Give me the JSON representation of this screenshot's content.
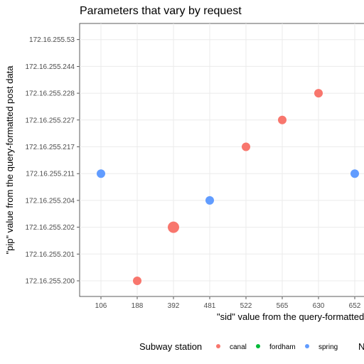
{
  "chart_data": {
    "type": "scatter",
    "title": "Parameters that vary by request",
    "xlabel": "\"sid\" value from the query-formatted post data",
    "ylabel": "\"pip\" value from the query-formatted post data",
    "x_categories": [
      "106",
      "188",
      "392",
      "481",
      "522",
      "565",
      "630",
      "652"
    ],
    "y_categories": [
      "172.16.255.200",
      "172.16.255.201",
      "172.16.255.202",
      "172.16.255.204",
      "172.16.255.211",
      "172.16.255.217",
      "172.16.255.227",
      "172.16.255.228",
      "172.16.255.244",
      "172.16.255.53"
    ],
    "grid": true,
    "legend": {
      "title": "Subway station",
      "placement": "bottom",
      "entries": [
        {
          "label": "canal",
          "color": "#F8766D"
        },
        {
          "label": "fordham",
          "color": "#00BA38"
        },
        {
          "label": "spring",
          "color": "#619CFF"
        }
      ],
      "extra_label": "N"
    },
    "points": [
      {
        "x": "106",
        "y": "172.16.255.211",
        "station": "spring",
        "n": 1
      },
      {
        "x": "188",
        "y": "172.16.255.200",
        "station": "canal",
        "n": 1
      },
      {
        "x": "392",
        "y": "172.16.255.202",
        "station": "canal",
        "n": 2
      },
      {
        "x": "481",
        "y": "172.16.255.204",
        "station": "spring",
        "n": 1
      },
      {
        "x": "522",
        "y": "172.16.255.217",
        "station": "canal",
        "n": 1
      },
      {
        "x": "565",
        "y": "172.16.255.227",
        "station": "canal",
        "n": 1
      },
      {
        "x": "630",
        "y": "172.16.255.228",
        "station": "canal",
        "n": 1
      },
      {
        "x": "652",
        "y": "172.16.255.211",
        "station": "spring",
        "n": 1
      }
    ]
  }
}
